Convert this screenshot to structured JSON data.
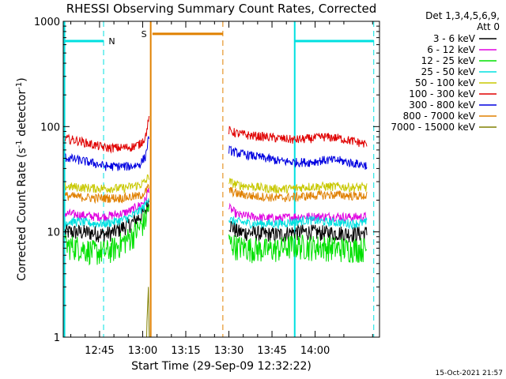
{
  "chart_data": {
    "type": "line",
    "title": "RHESSI Observing Summary Count Rates, Corrected",
    "xlabel": "Start Time (29-Sep-09 12:32:22)",
    "ylabel_main": "Corrected Count Rate (s",
    "ylabel_sup1": "-1",
    "ylabel_mid": " detector",
    "ylabel_sup2": "-1",
    "ylabel_end": ")",
    "y_scale": "log",
    "ylim": [
      1,
      1000
    ],
    "xlim_minutes_of_day": [
      752.37,
      862.4
    ],
    "x_ticks": [
      {
        "label": "12:45",
        "t": 765
      },
      {
        "label": "13:00",
        "t": 780
      },
      {
        "label": "13:15",
        "t": 795
      },
      {
        "label": "13:30",
        "t": 810
      },
      {
        "label": "13:45",
        "t": 825
      },
      {
        "label": "14:00",
        "t": 840
      }
    ],
    "y_ticks": [
      {
        "label": "1",
        "v": 1
      },
      {
        "label": "10",
        "v": 10
      },
      {
        "label": "100",
        "v": 100
      },
      {
        "label": "1000",
        "v": 1000
      }
    ],
    "legend_header": [
      "Det 1,3,4,5,6,9,",
      "Att 0"
    ],
    "legend_position": "right",
    "timestamp": "15-Oct-2021 21:57",
    "gap": [
      782.8,
      809.5
    ],
    "series": [
      {
        "name": "3 - 6 keV",
        "color": "#000000",
        "pre": [
          [
            753,
            10
          ],
          [
            758,
            10
          ],
          [
            763,
            9.8
          ],
          [
            767,
            9.5
          ],
          [
            770,
            10
          ],
          [
            773,
            11
          ],
          [
            776,
            12
          ],
          [
            779,
            14
          ],
          [
            781,
            16
          ],
          [
            782.2,
            20
          ]
        ],
        "post": [
          [
            810,
            12
          ],
          [
            813,
            10
          ],
          [
            818,
            9.8
          ],
          [
            823,
            9.5
          ],
          [
            828,
            9.5
          ],
          [
            833,
            10
          ],
          [
            838,
            10
          ],
          [
            843,
            9.8
          ],
          [
            848,
            9.8
          ],
          [
            853,
            9.6
          ],
          [
            858,
            9.8
          ]
        ]
      },
      {
        "name": "6 - 12 keV",
        "color": "#e000e0",
        "pre": [
          [
            753,
            15
          ],
          [
            758,
            14.5
          ],
          [
            763,
            14
          ],
          [
            767,
            14
          ],
          [
            770,
            14.5
          ],
          [
            773,
            15
          ],
          [
            776,
            16
          ],
          [
            779,
            18
          ],
          [
            781,
            20
          ],
          [
            782.2,
            26
          ]
        ],
        "post": [
          [
            810,
            17
          ],
          [
            813,
            14.5
          ],
          [
            818,
            14
          ],
          [
            823,
            13.5
          ],
          [
            828,
            13.5
          ],
          [
            833,
            14
          ],
          [
            838,
            14
          ],
          [
            843,
            14
          ],
          [
            848,
            14
          ],
          [
            853,
            13.8
          ],
          [
            858,
            14
          ]
        ]
      },
      {
        "name": "12 - 25 keV",
        "color": "#00e000",
        "pre": [
          [
            753,
            7.5
          ],
          [
            758,
            7.2
          ],
          [
            763,
            6.5
          ],
          [
            767,
            6.5
          ],
          [
            770,
            7
          ],
          [
            773,
            8
          ],
          [
            776,
            9
          ],
          [
            779,
            11
          ],
          [
            781,
            13
          ],
          [
            782.2,
            18
          ]
        ],
        "post": [
          [
            810,
            8
          ],
          [
            813,
            7.3
          ],
          [
            818,
            7
          ],
          [
            823,
            6.8
          ],
          [
            828,
            7
          ],
          [
            833,
            7.5
          ],
          [
            838,
            7.3
          ],
          [
            843,
            7.3
          ],
          [
            848,
            7
          ],
          [
            853,
            7
          ],
          [
            858,
            7
          ]
        ]
      },
      {
        "name": "25 - 50 keV",
        "color": "#00e0e0",
        "pre": [
          [
            753,
            12.5
          ],
          [
            758,
            12.5
          ],
          [
            763,
            12
          ],
          [
            767,
            12
          ],
          [
            770,
            12.5
          ],
          [
            773,
            13
          ],
          [
            776,
            14
          ],
          [
            779,
            16
          ],
          [
            781,
            18
          ],
          [
            782.2,
            22
          ]
        ],
        "post": [
          [
            810,
            13
          ],
          [
            813,
            12.5
          ],
          [
            818,
            12
          ],
          [
            823,
            12
          ],
          [
            828,
            12
          ],
          [
            833,
            12.5
          ],
          [
            838,
            13
          ],
          [
            843,
            12.5
          ],
          [
            848,
            12.3
          ],
          [
            853,
            12
          ],
          [
            858,
            12.3
          ]
        ]
      },
      {
        "name": "50 - 100 keV",
        "color": "#c8c800",
        "pre": [
          [
            753,
            27
          ],
          [
            758,
            26.5
          ],
          [
            763,
            26
          ],
          [
            767,
            26
          ],
          [
            770,
            26
          ],
          [
            773,
            26
          ],
          [
            776,
            27
          ],
          [
            779,
            28
          ],
          [
            781,
            30
          ],
          [
            782.2,
            34
          ]
        ],
        "post": [
          [
            810,
            30
          ],
          [
            813,
            28
          ],
          [
            818,
            27
          ],
          [
            823,
            26
          ],
          [
            828,
            25.5
          ],
          [
            833,
            26
          ],
          [
            838,
            27
          ],
          [
            843,
            27
          ],
          [
            848,
            27
          ],
          [
            853,
            26.5
          ],
          [
            858,
            26.5
          ]
        ]
      },
      {
        "name": "100 - 300 keV",
        "color": "#e00000",
        "pre": [
          [
            753,
            77
          ],
          [
            758,
            73
          ],
          [
            763,
            67
          ],
          [
            767,
            63
          ],
          [
            770,
            63
          ],
          [
            773,
            63
          ],
          [
            776,
            64
          ],
          [
            779,
            68
          ],
          [
            781,
            80
          ],
          [
            782.2,
            118
          ]
        ],
        "post": [
          [
            810,
            92
          ],
          [
            813,
            86
          ],
          [
            818,
            82
          ],
          [
            823,
            80
          ],
          [
            828,
            77
          ],
          [
            833,
            75
          ],
          [
            838,
            77
          ],
          [
            843,
            80
          ],
          [
            848,
            78
          ],
          [
            853,
            73
          ],
          [
            858,
            68
          ]
        ]
      },
      {
        "name": "300 - 800 keV",
        "color": "#0000e0",
        "pre": [
          [
            753,
            51
          ],
          [
            758,
            48
          ],
          [
            763,
            45
          ],
          [
            767,
            42
          ],
          [
            770,
            42
          ],
          [
            773,
            42
          ],
          [
            776,
            42
          ],
          [
            779,
            44
          ],
          [
            781,
            52
          ],
          [
            782.2,
            80
          ]
        ],
        "post": [
          [
            810,
            60
          ],
          [
            813,
            56
          ],
          [
            818,
            53
          ],
          [
            823,
            50
          ],
          [
            828,
            47
          ],
          [
            833,
            46
          ],
          [
            838,
            46
          ],
          [
            843,
            48
          ],
          [
            848,
            48
          ],
          [
            853,
            45
          ],
          [
            858,
            43
          ]
        ]
      },
      {
        "name": "800 - 7000 keV",
        "color": "#e08000",
        "pre": [
          [
            753,
            22
          ],
          [
            758,
            21.5
          ],
          [
            763,
            21
          ],
          [
            767,
            21
          ],
          [
            770,
            21
          ],
          [
            773,
            21
          ],
          [
            776,
            21.5
          ],
          [
            779,
            22
          ],
          [
            781,
            24
          ],
          [
            782.2,
            27
          ]
        ],
        "post": [
          [
            810,
            25
          ],
          [
            813,
            23
          ],
          [
            818,
            22
          ],
          [
            823,
            21.5
          ],
          [
            828,
            21
          ],
          [
            833,
            21.5
          ],
          [
            838,
            22
          ],
          [
            843,
            22.5
          ],
          [
            848,
            22.5
          ],
          [
            853,
            22
          ],
          [
            858,
            22
          ]
        ]
      },
      {
        "name": "7000 - 15000 keV",
        "color": "#808000",
        "pre": [
          [
            781.4,
            1
          ],
          [
            781.5,
            1.4
          ],
          [
            781.8,
            2.2
          ],
          [
            782.0,
            3
          ],
          [
            782.2,
            1.3
          ],
          [
            782.3,
            1
          ]
        ],
        "post": []
      }
    ],
    "annotations": [
      {
        "label": "N",
        "color": "#00e0e0"
      },
      {
        "label": "S",
        "color": "#e08000"
      }
    ],
    "dashed_lines": [
      {
        "t": 766.4,
        "color": "#00e0e0"
      },
      {
        "t": 860.4,
        "color": "#00e0e0"
      },
      {
        "t": 807.9,
        "color": "#e08000"
      }
    ],
    "solid_lines": [
      {
        "t": 752.8,
        "color": "#00e0e0"
      },
      {
        "t": 832.9,
        "color": "#00e0e0"
      },
      {
        "t": 782.8,
        "color": "#e08000"
      }
    ],
    "bars": [
      {
        "t0": 752.8,
        "t1": 766.4,
        "level": 650,
        "color": "#00e0e0"
      },
      {
        "t0": 832.9,
        "t1": 860.4,
        "level": 650,
        "color": "#00e0e0"
      },
      {
        "t0": 783.4,
        "t1": 807.9,
        "level": 760,
        "color": "#e08000"
      }
    ]
  }
}
